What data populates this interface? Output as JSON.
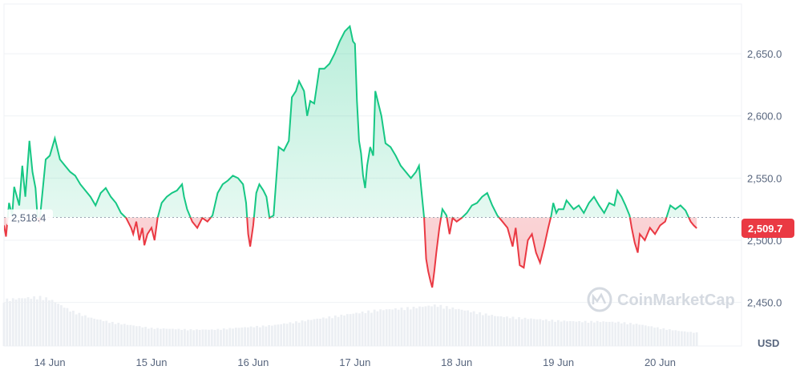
{
  "chart_data": {
    "type": "area",
    "currency_label": "USD",
    "watermark": "CoinMarketCap",
    "ylim": [
      2415,
      2690
    ],
    "y_ticks": [
      2450,
      2500,
      2550,
      2600,
      2650
    ],
    "y_tick_labels": [
      "2,450.0",
      "2,500.0",
      "2,550.0",
      "2,600.0",
      "2,650.0"
    ],
    "x_range": [
      13.55,
      20.8
    ],
    "x_ticks": [
      14,
      15,
      16,
      17,
      18,
      19,
      20
    ],
    "x_tick_labels": [
      "14 Jun",
      "15 Jun",
      "16 Jun",
      "17 Jun",
      "18 Jun",
      "19 Jun",
      "20 Jun"
    ],
    "baseline": 2518.4,
    "baseline_label": "2,518.4",
    "last_value": 2509.7,
    "last_label": "2,509.7",
    "colors": {
      "up": "#16c784",
      "down": "#ea3943"
    },
    "series": [
      {
        "values": [
          [
            13.55,
            2512
          ],
          [
            13.57,
            2503
          ],
          [
            13.6,
            2530
          ],
          [
            13.63,
            2520
          ],
          [
            13.65,
            2543
          ],
          [
            13.7,
            2528
          ],
          [
            13.73,
            2560
          ],
          [
            13.76,
            2535
          ],
          [
            13.8,
            2580
          ],
          [
            13.83,
            2555
          ],
          [
            13.86,
            2542
          ],
          [
            13.88,
            2518
          ],
          [
            13.9,
            2515
          ],
          [
            13.93,
            2540
          ],
          [
            13.96,
            2565
          ],
          [
            14.0,
            2568
          ],
          [
            14.05,
            2582
          ],
          [
            14.1,
            2565
          ],
          [
            14.15,
            2560
          ],
          [
            14.2,
            2555
          ],
          [
            14.25,
            2552
          ],
          [
            14.3,
            2545
          ],
          [
            14.35,
            2540
          ],
          [
            14.4,
            2535
          ],
          [
            14.45,
            2528
          ],
          [
            14.5,
            2538
          ],
          [
            14.55,
            2542
          ],
          [
            14.6,
            2535
          ],
          [
            14.65,
            2530
          ],
          [
            14.7,
            2522
          ],
          [
            14.75,
            2518
          ],
          [
            14.8,
            2510
          ],
          [
            14.82,
            2505
          ],
          [
            14.85,
            2515
          ],
          [
            14.88,
            2500
          ],
          [
            14.91,
            2510
          ],
          [
            14.93,
            2496
          ],
          [
            14.96,
            2505
          ],
          [
            15.0,
            2510
          ],
          [
            15.03,
            2500
          ],
          [
            15.06,
            2518
          ],
          [
            15.1,
            2530
          ],
          [
            15.15,
            2535
          ],
          [
            15.2,
            2538
          ],
          [
            15.25,
            2540
          ],
          [
            15.3,
            2545
          ],
          [
            15.32,
            2535
          ],
          [
            15.35,
            2525
          ],
          [
            15.4,
            2515
          ],
          [
            15.45,
            2510
          ],
          [
            15.5,
            2518
          ],
          [
            15.55,
            2515
          ],
          [
            15.6,
            2520
          ],
          [
            15.65,
            2538
          ],
          [
            15.7,
            2545
          ],
          [
            15.75,
            2548
          ],
          [
            15.8,
            2552
          ],
          [
            15.85,
            2550
          ],
          [
            15.9,
            2545
          ],
          [
            15.93,
            2530
          ],
          [
            15.95,
            2505
          ],
          [
            15.97,
            2495
          ],
          [
            16.0,
            2512
          ],
          [
            16.03,
            2538
          ],
          [
            16.06,
            2545
          ],
          [
            16.1,
            2540
          ],
          [
            16.13,
            2535
          ],
          [
            16.16,
            2518
          ],
          [
            16.2,
            2520
          ],
          [
            16.25,
            2575
          ],
          [
            16.3,
            2572
          ],
          [
            16.35,
            2580
          ],
          [
            16.38,
            2615
          ],
          [
            16.42,
            2620
          ],
          [
            16.45,
            2628
          ],
          [
            16.5,
            2620
          ],
          [
            16.53,
            2600
          ],
          [
            16.56,
            2612
          ],
          [
            16.6,
            2610
          ],
          [
            16.65,
            2638
          ],
          [
            16.7,
            2638
          ],
          [
            16.75,
            2642
          ],
          [
            16.8,
            2650
          ],
          [
            16.85,
            2660
          ],
          [
            16.9,
            2668
          ],
          [
            16.95,
            2672
          ],
          [
            16.98,
            2660
          ],
          [
            17.0,
            2658
          ],
          [
            17.02,
            2612
          ],
          [
            17.04,
            2580
          ],
          [
            17.06,
            2570
          ],
          [
            17.08,
            2552
          ],
          [
            17.1,
            2542
          ],
          [
            17.12,
            2560
          ],
          [
            17.15,
            2575
          ],
          [
            17.18,
            2568
          ],
          [
            17.2,
            2620
          ],
          [
            17.23,
            2610
          ],
          [
            17.26,
            2600
          ],
          [
            17.3,
            2578
          ],
          [
            17.35,
            2575
          ],
          [
            17.4,
            2568
          ],
          [
            17.45,
            2560
          ],
          [
            17.5,
            2555
          ],
          [
            17.55,
            2550
          ],
          [
            17.6,
            2555
          ],
          [
            17.63,
            2560
          ],
          [
            17.66,
            2535
          ],
          [
            17.68,
            2518
          ],
          [
            17.7,
            2485
          ],
          [
            17.72,
            2475
          ],
          [
            17.74,
            2468
          ],
          [
            17.76,
            2462
          ],
          [
            17.78,
            2475
          ],
          [
            17.8,
            2490
          ],
          [
            17.83,
            2510
          ],
          [
            17.86,
            2525
          ],
          [
            17.9,
            2520
          ],
          [
            17.93,
            2505
          ],
          [
            17.96,
            2518
          ],
          [
            18.0,
            2515
          ],
          [
            18.05,
            2518
          ],
          [
            18.1,
            2522
          ],
          [
            18.15,
            2528
          ],
          [
            18.2,
            2530
          ],
          [
            18.25,
            2535
          ],
          [
            18.3,
            2538
          ],
          [
            18.35,
            2528
          ],
          [
            18.4,
            2520
          ],
          [
            18.45,
            2515
          ],
          [
            18.5,
            2510
          ],
          [
            18.55,
            2495
          ],
          [
            18.58,
            2510
          ],
          [
            18.62,
            2480
          ],
          [
            18.66,
            2478
          ],
          [
            18.7,
            2500
          ],
          [
            18.74,
            2505
          ],
          [
            18.78,
            2490
          ],
          [
            18.82,
            2482
          ],
          [
            18.86,
            2495
          ],
          [
            18.9,
            2510
          ],
          [
            18.93,
            2520
          ],
          [
            18.95,
            2530
          ],
          [
            18.98,
            2522
          ],
          [
            19.0,
            2525
          ],
          [
            19.05,
            2525
          ],
          [
            19.08,
            2532
          ],
          [
            19.1,
            2530
          ],
          [
            19.15,
            2525
          ],
          [
            19.2,
            2528
          ],
          [
            19.25,
            2522
          ],
          [
            19.3,
            2530
          ],
          [
            19.35,
            2535
          ],
          [
            19.4,
            2528
          ],
          [
            19.45,
            2522
          ],
          [
            19.5,
            2530
          ],
          [
            19.55,
            2528
          ],
          [
            19.58,
            2540
          ],
          [
            19.62,
            2535
          ],
          [
            19.66,
            2528
          ],
          [
            19.7,
            2520
          ],
          [
            19.72,
            2510
          ],
          [
            19.75,
            2498
          ],
          [
            19.78,
            2490
          ],
          [
            19.8,
            2505
          ],
          [
            19.85,
            2500
          ],
          [
            19.9,
            2510
          ],
          [
            19.95,
            2505
          ],
          [
            20.0,
            2512
          ],
          [
            20.05,
            2515
          ],
          [
            20.1,
            2528
          ],
          [
            20.15,
            2525
          ],
          [
            20.2,
            2528
          ],
          [
            20.25,
            2524
          ],
          [
            20.3,
            2515
          ],
          [
            20.33,
            2512
          ],
          [
            20.36,
            2509.7
          ]
        ]
      }
    ],
    "volume": [
      [
        13.55,
        0.62
      ],
      [
        13.7,
        0.64
      ],
      [
        13.9,
        0.66
      ],
      [
        14.0,
        0.63
      ],
      [
        14.2,
        0.48
      ],
      [
        14.4,
        0.38
      ],
      [
        14.6,
        0.32
      ],
      [
        14.8,
        0.28
      ],
      [
        15.0,
        0.24
      ],
      [
        15.2,
        0.23
      ],
      [
        15.4,
        0.22
      ],
      [
        15.6,
        0.22
      ],
      [
        15.8,
        0.24
      ],
      [
        16.0,
        0.26
      ],
      [
        16.2,
        0.28
      ],
      [
        16.4,
        0.32
      ],
      [
        16.6,
        0.36
      ],
      [
        16.8,
        0.4
      ],
      [
        17.0,
        0.44
      ],
      [
        17.2,
        0.48
      ],
      [
        17.4,
        0.5
      ],
      [
        17.6,
        0.52
      ],
      [
        17.8,
        0.55
      ],
      [
        18.0,
        0.5
      ],
      [
        18.2,
        0.45
      ],
      [
        18.4,
        0.4
      ],
      [
        18.6,
        0.38
      ],
      [
        18.8,
        0.36
      ],
      [
        19.0,
        0.34
      ],
      [
        19.2,
        0.33
      ],
      [
        19.4,
        0.33
      ],
      [
        19.6,
        0.32
      ],
      [
        19.8,
        0.29
      ],
      [
        20.0,
        0.24
      ],
      [
        20.2,
        0.2
      ],
      [
        20.36,
        0.18
      ]
    ]
  }
}
